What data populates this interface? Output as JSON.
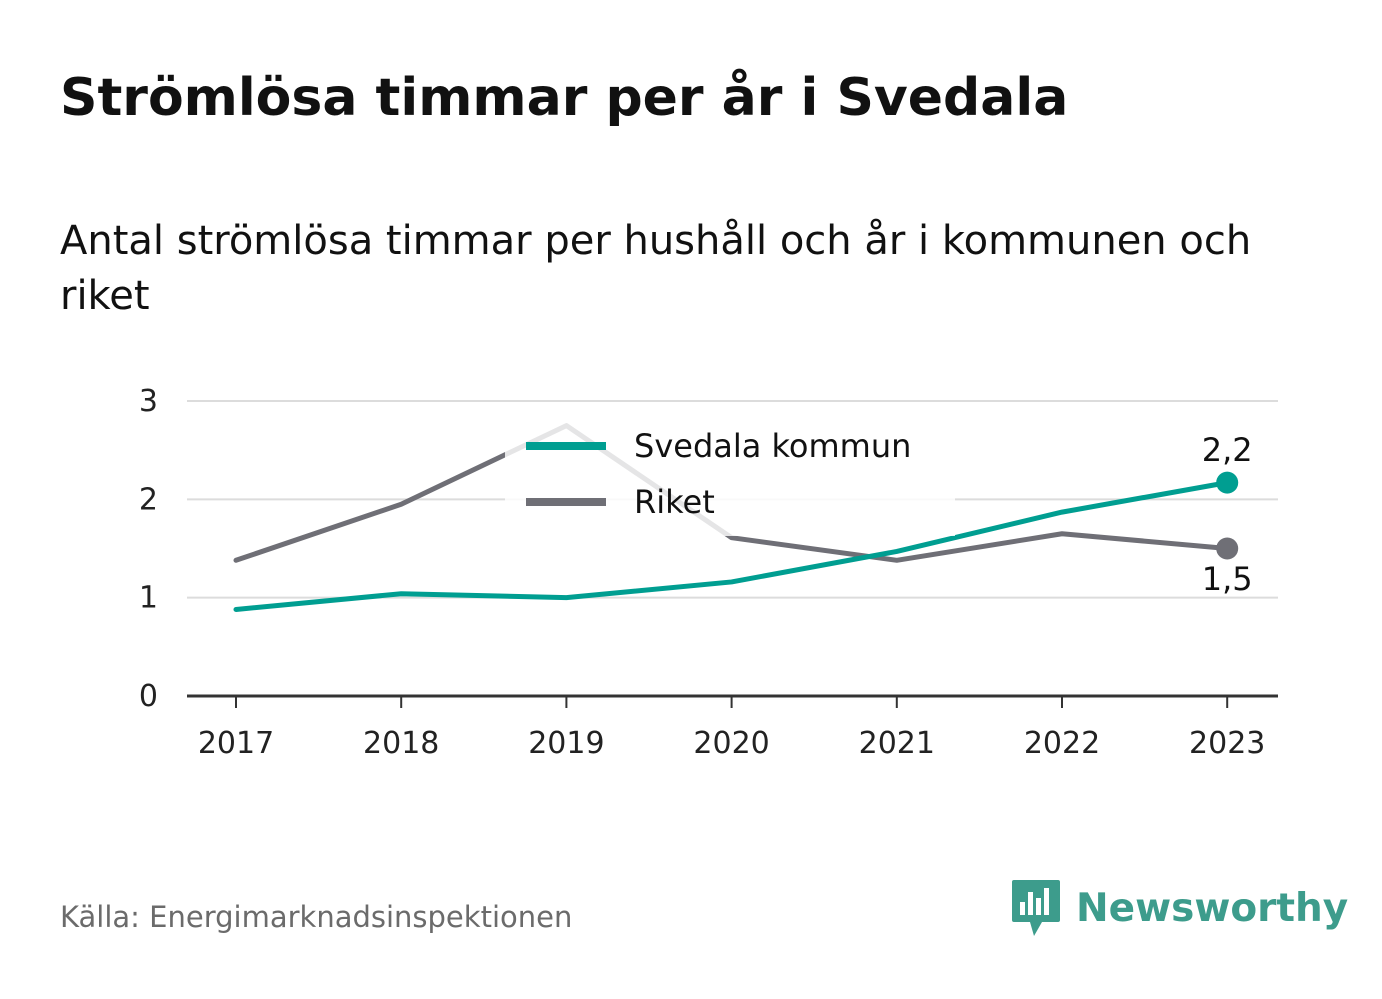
{
  "header": {
    "title": "Strömlösa timmar per år i Svedala",
    "subtitle": "Antal strömlösa timmar per hushåll och år i kommunen och riket"
  },
  "footer": {
    "source": "Källa: Energimarknadsinspektionen",
    "brand": "Newsworthy",
    "brand_icon": "bar-chart-speech-bubble-icon"
  },
  "colors": {
    "svedala": "#009e91",
    "riket": "#6f6f76",
    "grid": "#dcdcdc",
    "axis": "#333333",
    "brand": "#3d9c8c"
  },
  "chart_data": {
    "type": "line",
    "x": [
      "2017",
      "2018",
      "2019",
      "2020",
      "2021",
      "2022",
      "2023"
    ],
    "y_ticks": [
      "0",
      "1",
      "2",
      "3"
    ],
    "ylim": [
      0,
      3
    ],
    "grid": true,
    "legend_position": "top-center",
    "series": [
      {
        "name": "Svedala kommun",
        "color": "#009e91",
        "values": [
          0.88,
          1.04,
          1.0,
          1.16,
          1.47,
          1.87,
          2.17
        ],
        "end_label": "2,2"
      },
      {
        "name": "Riket",
        "color": "#6f6f76",
        "values": [
          1.38,
          1.95,
          2.75,
          1.61,
          1.38,
          1.65,
          1.5
        ],
        "end_label": "1,5"
      }
    ]
  }
}
